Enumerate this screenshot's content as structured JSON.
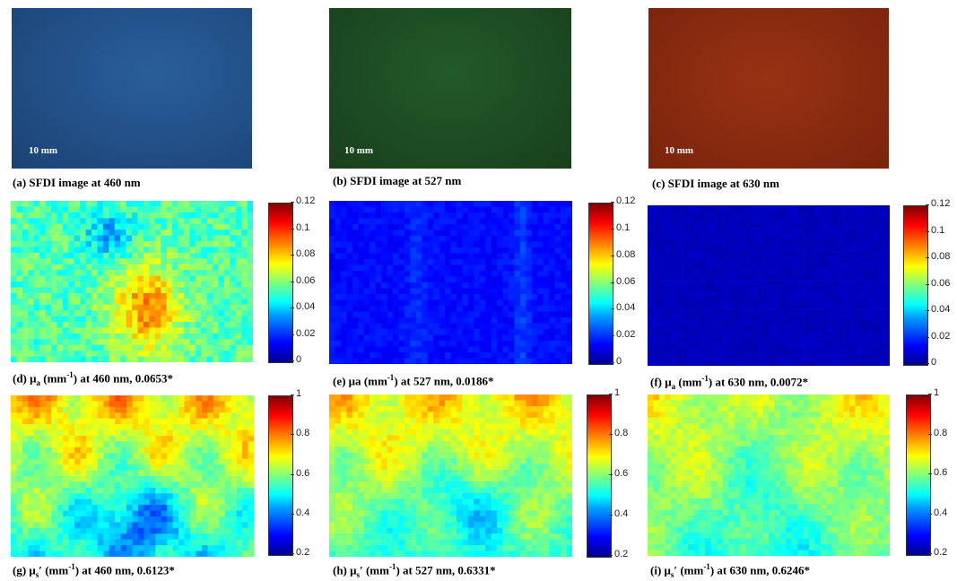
{
  "scale_bar_label": "10 mm",
  "photos": [
    {
      "caption": "(a) SFDI image at 460 nm",
      "color": "#1f4e86"
    },
    {
      "caption": "(b) SFDI image at 527 nm",
      "color": "#1f4a24"
    },
    {
      "caption": "(c) SFDI image at 630 nm",
      "color": "#8a2a10"
    }
  ],
  "colorbars": {
    "absorption_ticks": [
      "0.12",
      "0.1",
      "0.08",
      "0.06",
      "0.04",
      "0.02",
      "0"
    ],
    "scattering_ticks": [
      "1",
      "0.8",
      "0.6",
      "0.4",
      "0.2"
    ]
  },
  "maps": [
    {
      "id": "d",
      "cap_pre": "(d) μ",
      "cap_sub": "a",
      "cap_unit_pre": " (mm",
      "cap_sup": "-1",
      "cap_post": ") at 460 nm, 0.0653*",
      "mean": 0.0653,
      "scale": "absorption"
    },
    {
      "id": "e",
      "cap_pre": "(e) μa",
      "cap_sub": "",
      "cap_unit_pre": " (mm",
      "cap_sup": "-1",
      "cap_post": ") at 527 nm, 0.0186*",
      "mean": 0.0186,
      "scale": "absorption"
    },
    {
      "id": "f",
      "cap_pre": "(f) μ",
      "cap_sub": "a",
      "cap_unit_pre": " (mm",
      "cap_sup": "-1",
      "cap_post": ") at 630 nm, 0.0072*",
      "mean": 0.0072,
      "scale": "absorption"
    },
    {
      "id": "g",
      "cap_pre": "(g) μ",
      "cap_sub": "s",
      "cap_unit_pre": "′ (mm",
      "cap_sup": "-1",
      "cap_post": ") at 460 nm, 0.6123*",
      "mean": 0.6123,
      "scale": "scattering"
    },
    {
      "id": "h",
      "cap_pre": "(h) μ",
      "cap_sub": "s",
      "cap_unit_pre": "′ (mm",
      "cap_sup": "-1",
      "cap_post": ") at 527 nm, 0.6331*",
      "mean": 0.6331,
      "scale": "scattering"
    },
    {
      "id": "i",
      "cap_pre": "(i) μ",
      "cap_sub": "s",
      "cap_unit_pre": "′ (mm",
      "cap_sup": "-1",
      "cap_post": ") at 630 nm, 0.6246*",
      "mean": 0.6246,
      "scale": "scattering"
    }
  ]
}
